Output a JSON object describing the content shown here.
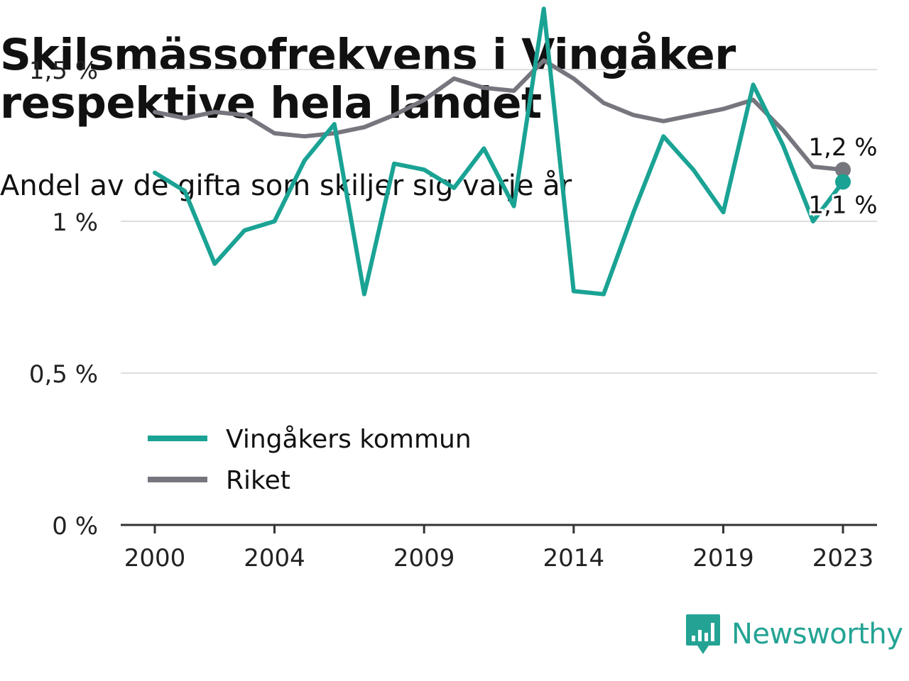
{
  "title_line1": "Skilsmässofrekvens i Vingåker",
  "title_line2": "respektive hela landet",
  "subtitle": "Andel av de gifta som skiljer sig varje år",
  "brand": {
    "name": "Newsworthy"
  },
  "colors": {
    "vingaker": "#1aa394",
    "riket": "#76767e",
    "grid": "#dddddd",
    "axis": "#333333",
    "background": "#ffffff"
  },
  "chart_data": {
    "type": "line",
    "x": [
      2000,
      2001,
      2002,
      2003,
      2004,
      2005,
      2006,
      2007,
      2008,
      2009,
      2010,
      2011,
      2012,
      2013,
      2014,
      2015,
      2016,
      2017,
      2018,
      2019,
      2020,
      2021,
      2022,
      2023
    ],
    "series": [
      {
        "name": "Vingåkers kommun",
        "color": "#1aa394",
        "values": [
          1.16,
          1.1,
          0.86,
          0.97,
          1.0,
          1.2,
          1.32,
          0.76,
          1.19,
          1.17,
          1.11,
          1.24,
          1.05,
          1.7,
          0.77,
          0.76,
          1.03,
          1.28,
          1.17,
          1.03,
          1.45,
          1.25,
          1.0,
          1.13
        ]
      },
      {
        "name": "Riket",
        "color": "#76767e",
        "values": [
          1.36,
          1.34,
          1.36,
          1.35,
          1.29,
          1.28,
          1.29,
          1.31,
          1.35,
          1.4,
          1.47,
          1.44,
          1.43,
          1.53,
          1.47,
          1.39,
          1.35,
          1.33,
          1.35,
          1.37,
          1.4,
          1.3,
          1.18,
          1.17
        ]
      }
    ],
    "xticks": [
      2000,
      2004,
      2009,
      2014,
      2019,
      2023
    ],
    "xtick_labels": [
      "2000",
      "2004",
      "2009",
      "2014",
      "2019",
      "2023"
    ],
    "yticks": [
      0,
      0.5,
      1,
      1.5
    ],
    "ytick_labels": [
      "0 %",
      "0,5 %",
      "1 %",
      "1,5 %"
    ],
    "ylim": [
      0,
      1.5
    ],
    "xlim": [
      2000,
      2023
    ],
    "end_labels": [
      {
        "series": "Riket",
        "text": "1,2 %",
        "position": "above"
      },
      {
        "series": "Vingåkers kommun",
        "text": "1,1 %",
        "position": "below"
      }
    ],
    "legend": [
      {
        "label": "Vingåkers kommun",
        "color": "#1aa394"
      },
      {
        "label": "Riket",
        "color": "#76767e"
      }
    ],
    "legend_position": "lower-left",
    "grid": true,
    "xlabel": "",
    "ylabel": ""
  }
}
